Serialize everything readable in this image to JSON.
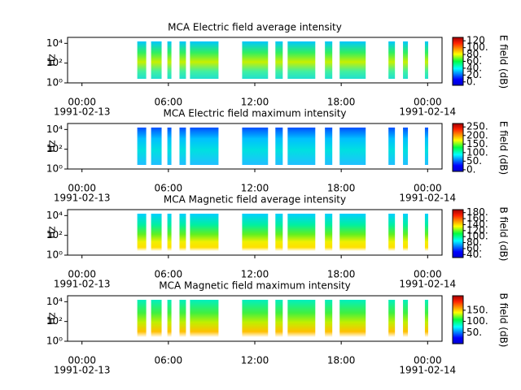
{
  "chart_data": [
    {
      "type": "spectrogram",
      "title": "MCA  Electric field average intensity",
      "ylabel": "Hz",
      "yscale": "log",
      "ylim": [
        1,
        40000
      ],
      "yticks": [
        {
          "value": 1,
          "label": "10⁰"
        },
        {
          "value": 100,
          "label": "10²"
        },
        {
          "value": 10000,
          "label": "10⁴"
        }
      ],
      "xlim": [
        -1,
        25
      ],
      "xticks": [
        {
          "value": 0,
          "label": "00:00"
        },
        {
          "value": 6,
          "label": "06:00"
        },
        {
          "value": 12,
          "label": "12:00"
        },
        {
          "value": 18,
          "label": "18:00"
        },
        {
          "value": 24,
          "label": "00:00"
        }
      ],
      "x_date_labels": [
        {
          "value": 0,
          "label": "1991-02-13"
        },
        {
          "value": 24,
          "label": "1991-02-14"
        }
      ],
      "segments": [
        [
          3.84,
          4.46
        ],
        [
          4.8,
          5.53
        ],
        [
          5.93,
          6.21
        ],
        [
          6.77,
          7.22
        ],
        [
          7.5,
          9.48
        ],
        [
          11.12,
          12.92
        ],
        [
          13.43,
          13.94
        ],
        [
          14.28,
          16.2
        ],
        [
          16.87,
          17.38
        ],
        [
          17.89,
          19.7
        ],
        [
          21.28,
          21.73
        ],
        [
          22.29,
          22.63
        ],
        [
          23.81,
          24.04
        ]
      ],
      "colorbar_label": "E field (dB)",
      "clim": [
        -10,
        130
      ],
      "cticks": [
        {
          "value": 0,
          "label": "0."
        },
        {
          "value": 20,
          "label": "20."
        },
        {
          "value": 40,
          "label": "40."
        },
        {
          "value": 60,
          "label": "60."
        },
        {
          "value": 80,
          "label": "80."
        },
        {
          "value": 100,
          "label": "100."
        },
        120
      ]
    },
    {
      "type": "spectrogram",
      "title": "MCA  Electric field maximum intensity",
      "ylabel": "Hz",
      "yscale": "log",
      "ylim": [
        1,
        40000
      ],
      "yticks": [
        {
          "value": 1,
          "label": "10⁰"
        },
        {
          "value": 100,
          "label": "10²"
        },
        {
          "value": 10000,
          "label": "10⁴"
        }
      ],
      "xlim": [
        -1,
        25
      ],
      "xticks": [
        {
          "value": 0,
          "label": "00:00"
        },
        {
          "value": 6,
          "label": "06:00"
        },
        {
          "value": 12,
          "label": "12:00"
        },
        {
          "value": 18,
          "label": "18:00"
        },
        {
          "value": 24,
          "label": "00:00"
        }
      ],
      "x_date_labels": [
        {
          "value": 0,
          "label": "1991-02-13"
        },
        {
          "value": 24,
          "label": "1991-02-14"
        }
      ],
      "segments": [
        [
          3.84,
          4.46
        ],
        [
          4.8,
          5.53
        ],
        [
          5.93,
          6.21
        ],
        [
          6.77,
          7.22
        ],
        [
          7.5,
          9.48
        ],
        [
          11.12,
          12.92
        ],
        [
          13.43,
          13.94
        ],
        [
          14.28,
          16.2
        ],
        [
          16.87,
          17.38
        ],
        [
          17.89,
          19.7
        ],
        [
          21.28,
          21.73
        ],
        [
          22.29,
          22.63
        ],
        [
          23.81,
          24.04
        ]
      ],
      "colorbar_label": "E field (dB)",
      "clim": [
        -10,
        270
      ],
      "cticks": [
        {
          "value": 0,
          "label": "0."
        },
        {
          "value": 50,
          "label": "50."
        },
        {
          "value": 100,
          "label": "100."
        },
        {
          "value": 150,
          "label": "150."
        },
        {
          "value": 200,
          "label": "200."
        },
        {
          "value": 250,
          "label": "250."
        }
      ]
    },
    {
      "type": "spectrogram",
      "title": "MCA  Magnetic field average intensity",
      "ylabel": "Hz",
      "yscale": "log",
      "ylim": [
        1,
        40000
      ],
      "yticks": [
        {
          "value": 1,
          "label": "10⁰"
        },
        {
          "value": 100,
          "label": "10²"
        },
        {
          "value": 10000,
          "label": "10⁴"
        }
      ],
      "xlim": [
        -1,
        25
      ],
      "xticks": [
        {
          "value": 0,
          "label": "00:00"
        },
        {
          "value": 6,
          "label": "06:00"
        },
        {
          "value": 12,
          "label": "12:00"
        },
        {
          "value": 18,
          "label": "18:00"
        },
        {
          "value": 24,
          "label": "00:00"
        }
      ],
      "x_date_labels": [
        {
          "value": 0,
          "label": "1991-02-13"
        },
        {
          "value": 24,
          "label": "1991-02-14"
        }
      ],
      "segments": [
        [
          3.84,
          4.46
        ],
        [
          4.8,
          5.53
        ],
        [
          5.93,
          6.21
        ],
        [
          6.77,
          7.22
        ],
        [
          7.5,
          9.48
        ],
        [
          11.12,
          12.92
        ],
        [
          13.43,
          13.94
        ],
        [
          14.28,
          16.2
        ],
        [
          16.87,
          17.38
        ],
        [
          17.89,
          19.7
        ],
        [
          21.28,
          21.73
        ],
        [
          22.29,
          22.63
        ],
        [
          23.81,
          24.04
        ]
      ],
      "colorbar_label": "B field (dB)",
      "clim": [
        30,
        190
      ],
      "cticks": [
        {
          "value": 40,
          "label": "40."
        },
        {
          "value": 60,
          "label": "60."
        },
        {
          "value": 80,
          "label": "80."
        },
        {
          "value": 100,
          "label": "100."
        },
        {
          "value": 120,
          "label": "120."
        },
        {
          "value": 140,
          "label": "140."
        },
        {
          "value": 160,
          "label": "160."
        },
        {
          "value": 180,
          "label": "180."
        }
      ]
    },
    {
      "type": "spectrogram",
      "title": "MCA  Magnetic field maximum intensity",
      "ylabel": "Hz",
      "yscale": "log",
      "ylim": [
        1,
        40000
      ],
      "yticks": [
        {
          "value": 1,
          "label": "10⁰"
        },
        {
          "value": 100,
          "label": "10²"
        },
        {
          "value": 10000,
          "label": "10⁴"
        }
      ],
      "xlim": [
        -1,
        25
      ],
      "xticks": [
        {
          "value": 0,
          "label": "00:00"
        },
        {
          "value": 6,
          "label": "06:00"
        },
        {
          "value": 12,
          "label": "12:00"
        },
        {
          "value": 18,
          "label": "18:00"
        },
        {
          "value": 24,
          "label": "00:00"
        }
      ],
      "x_date_labels": [
        {
          "value": 0,
          "label": "1991-02-13"
        },
        {
          "value": 24,
          "label": "1991-02-14"
        }
      ],
      "segments": [
        [
          3.84,
          4.46
        ],
        [
          4.8,
          5.53
        ],
        [
          5.93,
          6.21
        ],
        [
          6.77,
          7.22
        ],
        [
          7.5,
          9.48
        ],
        [
          11.12,
          12.92
        ],
        [
          13.43,
          13.94
        ],
        [
          14.28,
          16.2
        ],
        [
          16.87,
          17.38
        ],
        [
          17.89,
          19.7
        ],
        [
          21.28,
          21.73
        ],
        [
          22.29,
          22.63
        ],
        [
          23.81,
          24.04
        ]
      ],
      "colorbar_label": "B field (dB)",
      "clim": [
        0,
        215
      ],
      "cticks": [
        {
          "value": 50,
          "label": "50."
        },
        {
          "value": 100,
          "label": "100."
        },
        {
          "value": 150,
          "label": "150."
        }
      ]
    }
  ]
}
